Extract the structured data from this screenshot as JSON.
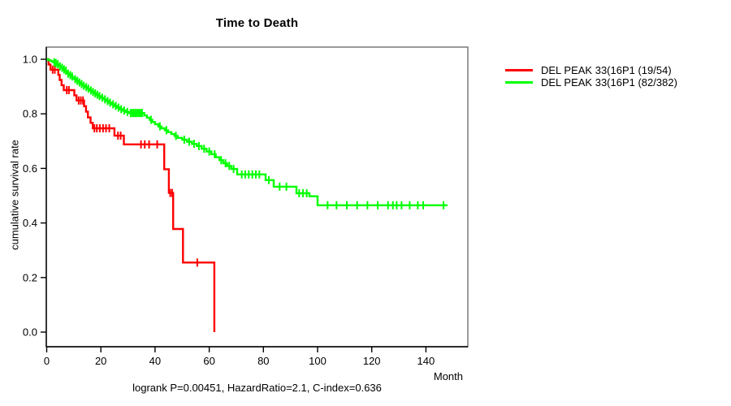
{
  "title": "Time to Death",
  "chart_data": {
    "type": "line",
    "subtype": "kaplan-meier-step",
    "title": "Time to Death",
    "xlabel": "Month",
    "ylabel": "cumulative survival rate",
    "xlim": [
      0,
      155
    ],
    "ylim": [
      0.0,
      1.0
    ],
    "x_ticks": [
      0,
      20,
      40,
      60,
      80,
      100,
      120,
      140
    ],
    "y_ticks": [
      0.0,
      0.2,
      0.4,
      0.6,
      0.8,
      1.0
    ],
    "grid": false,
    "legend_position": "right-outside",
    "annotation": "logrank P=0.00451, HazardRatio=2.1, C-index=0.636",
    "series": [
      {
        "name": "DEL PEAK 33(16P1 (19/54)",
        "color": "#ff0000",
        "steps": [
          [
            0,
            1.0
          ],
          [
            0.7,
            0.981
          ],
          [
            1.4,
            0.962
          ],
          [
            4.3,
            0.943
          ],
          [
            4.8,
            0.924
          ],
          [
            5.5,
            0.905
          ],
          [
            6.3,
            0.887
          ],
          [
            10.2,
            0.868
          ],
          [
            11.0,
            0.849
          ],
          [
            13.8,
            0.828
          ],
          [
            14.5,
            0.808
          ],
          [
            15.2,
            0.787
          ],
          [
            16.2,
            0.767
          ],
          [
            17.0,
            0.747
          ],
          [
            25.0,
            0.72
          ],
          [
            28.5,
            0.688
          ],
          [
            43.4,
            0.597
          ],
          [
            45.1,
            0.51
          ],
          [
            46.7,
            0.378
          ],
          [
            50.3,
            0.255
          ],
          [
            61.9,
            0.0
          ]
        ],
        "censor_months": [
          2.2,
          3.0,
          7.4,
          8.2,
          11.8,
          12.6,
          13.4,
          17.6,
          18.5,
          19.6,
          20.8,
          21.9,
          23.1,
          26.3,
          27.3,
          34.8,
          36.2,
          37.8,
          40.8,
          45.6,
          46.3,
          55.6
        ]
      },
      {
        "name": "DEL PEAK 33(16P1 (82/382)",
        "color": "#00ff00",
        "steps": [
          [
            0,
            1.0
          ],
          [
            0.6,
            0.997
          ],
          [
            1.2,
            0.995
          ],
          [
            1.8,
            0.992
          ],
          [
            2.4,
            0.989
          ],
          [
            3.0,
            0.986
          ],
          [
            3.6,
            0.982
          ],
          [
            4.2,
            0.978
          ],
          [
            4.8,
            0.974
          ],
          [
            5.4,
            0.969
          ],
          [
            6.0,
            0.963
          ],
          [
            6.6,
            0.958
          ],
          [
            7.2,
            0.952
          ],
          [
            7.8,
            0.947
          ],
          [
            8.4,
            0.942
          ],
          [
            9.0,
            0.937
          ],
          [
            9.6,
            0.932
          ],
          [
            10.2,
            0.927
          ],
          [
            11.0,
            0.921
          ],
          [
            11.8,
            0.915
          ],
          [
            12.6,
            0.909
          ],
          [
            13.4,
            0.903
          ],
          [
            14.2,
            0.898
          ],
          [
            15.0,
            0.892
          ],
          [
            15.8,
            0.886
          ],
          [
            16.6,
            0.88
          ],
          [
            17.4,
            0.875
          ],
          [
            18.2,
            0.87
          ],
          [
            19.0,
            0.865
          ],
          [
            20.0,
            0.859
          ],
          [
            21.0,
            0.853
          ],
          [
            22.0,
            0.847
          ],
          [
            23.0,
            0.841
          ],
          [
            24.0,
            0.835
          ],
          [
            25.0,
            0.829
          ],
          [
            26.0,
            0.823
          ],
          [
            27.0,
            0.817
          ],
          [
            28.0,
            0.812
          ],
          [
            29.2,
            0.807
          ],
          [
            30.5,
            0.803
          ],
          [
            36.0,
            0.794
          ],
          [
            37.0,
            0.786
          ],
          [
            38.0,
            0.778
          ],
          [
            39.0,
            0.77
          ],
          [
            40.0,
            0.762
          ],
          [
            41.2,
            0.754
          ],
          [
            42.4,
            0.747
          ],
          [
            43.6,
            0.74
          ],
          [
            44.8,
            0.733
          ],
          [
            46.0,
            0.726
          ],
          [
            47.2,
            0.719
          ],
          [
            48.4,
            0.712
          ],
          [
            50.0,
            0.705
          ],
          [
            51.8,
            0.698
          ],
          [
            53.6,
            0.69
          ],
          [
            55.4,
            0.682
          ],
          [
            57.2,
            0.672
          ],
          [
            59.0,
            0.662
          ],
          [
            60.8,
            0.652
          ],
          [
            62.4,
            0.641
          ],
          [
            63.8,
            0.63
          ],
          [
            65.2,
            0.619
          ],
          [
            66.6,
            0.609
          ],
          [
            68.2,
            0.598
          ],
          [
            70.3,
            0.578
          ],
          [
            80.8,
            0.557
          ],
          [
            83.8,
            0.533
          ],
          [
            92.2,
            0.509
          ],
          [
            97.0,
            0.498
          ],
          [
            100.0,
            0.465
          ],
          [
            148.0,
            0.465
          ]
        ],
        "censor_months": [
          2.8,
          3.4,
          4.1,
          4.9,
          5.7,
          6.4,
          7.1,
          7.9,
          8.7,
          9.4,
          10.5,
          11.3,
          12.1,
          12.9,
          13.7,
          14.6,
          15.4,
          16.3,
          17.1,
          17.9,
          18.7,
          19.5,
          20.5,
          21.5,
          22.5,
          23.4,
          24.5,
          25.5,
          26.5,
          27.5,
          28.6,
          29.8,
          31.0,
          31.6,
          32.2,
          32.8,
          33.4,
          34.0,
          34.6,
          35.2,
          38.5,
          41.8,
          44.2,
          47.7,
          50.8,
          52.6,
          54.4,
          56.2,
          58.1,
          60.0,
          62.0,
          64.4,
          66.0,
          67.4,
          69.0,
          72.0,
          73.3,
          74.6,
          75.9,
          77.2,
          78.5,
          82.0,
          86.0,
          88.5,
          93.2,
          94.6,
          96.0,
          103.7,
          107.0,
          110.8,
          114.6,
          118.4,
          122.2,
          126.0,
          127.8,
          129.2,
          131.0,
          134.0,
          137.0,
          139.0,
          146.5
        ]
      }
    ]
  }
}
